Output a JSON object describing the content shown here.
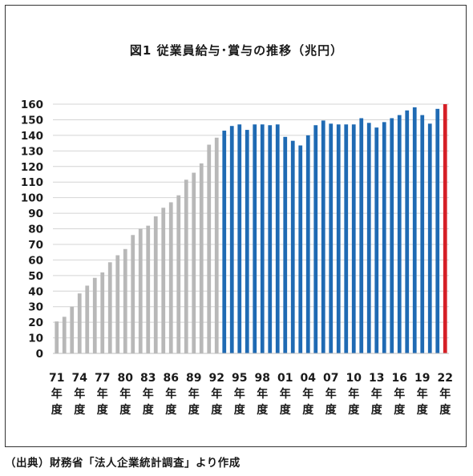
{
  "chart_data": {
    "type": "bar",
    "title": "図1 従業員給与･賞与の推移（兆円）",
    "source": "（出典）財務省「法人企業統計調査」より作成",
    "ylim": [
      0,
      160
    ],
    "yticks": [
      0,
      10,
      20,
      30,
      40,
      50,
      60,
      70,
      80,
      90,
      100,
      110,
      120,
      130,
      140,
      150,
      160
    ],
    "grid": true,
    "year_suffix": [
      "年",
      "度"
    ],
    "tick_labels": [
      "71",
      "74",
      "77",
      "80",
      "83",
      "86",
      "89",
      "92",
      "95",
      "98",
      "01",
      "04",
      "07",
      "10",
      "13",
      "16",
      "19",
      "22"
    ],
    "categories": [
      "71",
      "72",
      "73",
      "74",
      "75",
      "76",
      "77",
      "78",
      "79",
      "80",
      "81",
      "82",
      "83",
      "84",
      "85",
      "86",
      "87",
      "88",
      "89",
      "90",
      "91",
      "92",
      "93",
      "94",
      "95",
      "96",
      "97",
      "98",
      "99",
      "00",
      "01",
      "02",
      "03",
      "04",
      "05",
      "06",
      "07",
      "08",
      "09",
      "10",
      "11",
      "12",
      "13",
      "14",
      "15",
      "16",
      "17",
      "18",
      "19",
      "20",
      "21",
      "22"
    ],
    "values": [
      20.5,
      23.5,
      30,
      38.5,
      43.5,
      48.5,
      52,
      58.5,
      63,
      67,
      76,
      80,
      82,
      88,
      93.5,
      97,
      101.5,
      111.5,
      116,
      122,
      134,
      138.5,
      143,
      146,
      147,
      143.5,
      147,
      147,
      146.5,
      147,
      139,
      136.5,
      133.5,
      140,
      146.5,
      149.5,
      147.5,
      147,
      147,
      147,
      151,
      148,
      145,
      148.5,
      151,
      153,
      156,
      158,
      153,
      147.5,
      157,
      160
    ],
    "bar_colors": {
      "early": "#b8b8b8",
      "mid": "#1f6ab3",
      "latest": "#d61f26"
    },
    "color_breaks": {
      "blue_from": "93",
      "red_from": "22"
    }
  }
}
